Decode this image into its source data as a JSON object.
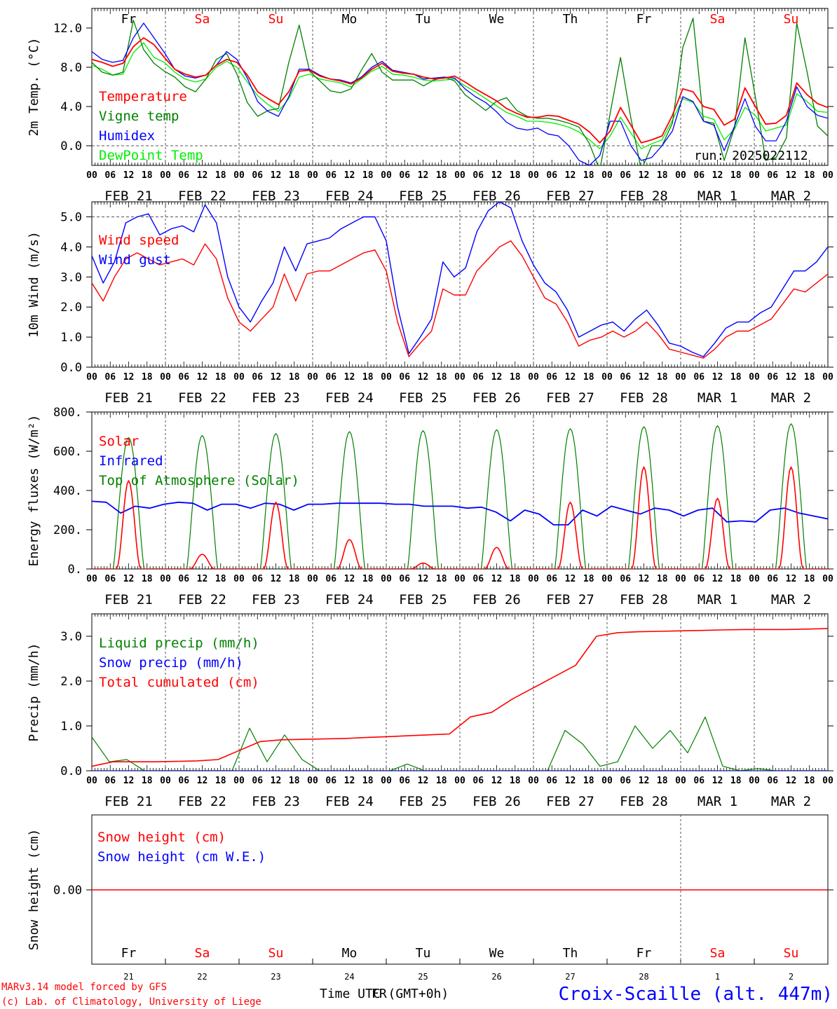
{
  "colors": {
    "red": "#ff0000",
    "green": "#008000",
    "blue": "#0000ff",
    "lightgreen": "#00ee00",
    "black": "#000000",
    "grid": "#555555"
  },
  "hour_ticks": [
    "00",
    "06",
    "12",
    "18"
  ],
  "date_labels": [
    "FEB 21",
    "FEB 22",
    "FEB 23",
    "FEB 24",
    "FEB 25",
    "FEB 26",
    "FEB 27",
    "FEB 28",
    "MAR  1",
    "MAR  2"
  ],
  "day_names": [
    {
      "label": "Fr",
      "color": "black"
    },
    {
      "label": "Sa",
      "color": "red"
    },
    {
      "label": "Su",
      "color": "red"
    },
    {
      "label": "Mo",
      "color": "black"
    },
    {
      "label": "Tu",
      "color": "black"
    },
    {
      "label": "We",
      "color": "black"
    },
    {
      "label": "Th",
      "color": "black"
    },
    {
      "label": "Fr",
      "color": "black"
    },
    {
      "label": "Sa",
      "color": "red"
    },
    {
      "label": "Su",
      "color": "red"
    }
  ],
  "day_numbers": [
    "21",
    "22",
    "23",
    "24",
    "25",
    "26",
    "27",
    "28",
    "1",
    "2"
  ],
  "footer": {
    "model_line1": "MARv3.14 model forced by GFS",
    "model_line2": "(c) Lab. of Climatology, University of Liege",
    "time_label": "Time UTC (GMT+0h)",
    "time_label_overlay": "FR",
    "station": "Croix-Scaille (alt. 447m)"
  },
  "chart_data": [
    {
      "type": "line",
      "ylabel": "2m Temp. (°C)",
      "ylim": [
        -2.0,
        14.0
      ],
      "y_ticks": [
        "12.0",
        "8.0",
        "4.0",
        "0.0"
      ],
      "dashed_reference": 0.0,
      "annotation": "run: 2025022112",
      "x_step_hours": 6,
      "series": [
        {
          "name": "Temperature",
          "color": "red",
          "values": [
            8.8,
            8.5,
            8.1,
            8.4,
            10.1,
            11.0,
            10.3,
            9.0,
            7.8,
            7.3,
            7.0,
            7.2,
            8.2,
            8.8,
            8.5,
            7.2,
            5.5,
            4.8,
            4.2,
            5.5,
            7.6,
            7.7,
            7.1,
            6.8,
            6.6,
            6.3,
            6.9,
            7.8,
            8.4,
            7.6,
            7.4,
            7.3,
            7.0,
            6.8,
            6.9,
            7.1,
            6.5,
            5.8,
            5.2,
            4.6,
            3.8,
            3.3,
            2.9,
            2.9,
            3.1,
            3.0,
            2.6,
            2.2,
            1.4,
            0.3,
            1.5,
            3.9,
            2.1,
            0.3,
            0.6,
            1.0,
            3.1,
            5.8,
            5.5,
            4.0,
            3.7,
            2.1,
            2.7,
            5.9,
            4.0,
            2.2,
            2.3,
            3.1,
            6.4,
            5.2,
            4.3,
            3.9
          ]
        },
        {
          "name": "Vigne temp",
          "color": "green",
          "values": [
            8.5,
            7.5,
            7.2,
            7.5,
            12.8,
            9.8,
            8.4,
            7.6,
            7.0,
            6.0,
            5.5,
            6.8,
            8.8,
            9.4,
            7.3,
            4.4,
            3.0,
            3.6,
            3.8,
            8.5,
            12.3,
            7.6,
            6.6,
            5.6,
            5.4,
            5.8,
            7.7,
            9.4,
            7.5,
            6.7,
            6.7,
            6.7,
            6.1,
            6.7,
            7.0,
            6.6,
            5.2,
            4.4,
            3.6,
            4.5,
            4.9,
            3.6,
            3.0,
            2.8,
            2.8,
            2.6,
            2.3,
            1.9,
            0.2,
            -2.5,
            3.3,
            9.0,
            2.8,
            -2.5,
            0.0,
            0.0,
            2.3,
            10.0,
            13.0,
            2.5,
            2.3,
            -1.5,
            1.9,
            11.0,
            5.0,
            -1.5,
            -1.2,
            0.8,
            12.5,
            7.5,
            2.0,
            1.0
          ]
        },
        {
          "name": "Humidex",
          "color": "blue",
          "values": [
            9.6,
            8.8,
            8.5,
            8.7,
            11.0,
            12.5,
            11.0,
            9.5,
            7.8,
            7.1,
            6.9,
            7.2,
            8.2,
            9.6,
            8.8,
            6.9,
            4.5,
            3.5,
            3.0,
            5.0,
            7.8,
            7.8,
            7.2,
            6.8,
            6.7,
            6.4,
            7.0,
            8.0,
            8.6,
            7.7,
            7.5,
            7.3,
            6.8,
            6.9,
            7.0,
            6.9,
            5.8,
            5.0,
            4.4,
            3.5,
            2.4,
            1.8,
            1.6,
            1.8,
            1.2,
            1.0,
            0.0,
            -1.5,
            -2.0,
            -1.0,
            2.5,
            2.5,
            0.0,
            -1.5,
            -1.2,
            0.0,
            1.5,
            5.0,
            4.5,
            2.5,
            2.1,
            -0.5,
            2.0,
            4.8,
            2.0,
            0.5,
            0.5,
            2.5,
            6.0,
            4.0,
            3.1,
            2.8
          ]
        },
        {
          "name": "DewPoint Temp",
          "color": "lightgreen",
          "values": [
            8.2,
            7.8,
            7.2,
            7.3,
            9.5,
            10.5,
            9.0,
            8.5,
            7.5,
            6.8,
            6.5,
            6.8,
            8.0,
            8.6,
            8.0,
            6.5,
            5.1,
            4.2,
            3.5,
            4.8,
            7.0,
            7.3,
            6.8,
            6.6,
            6.4,
            6.0,
            6.8,
            7.6,
            8.1,
            7.3,
            7.2,
            7.0,
            6.7,
            6.6,
            6.7,
            6.8,
            6.1,
            5.5,
            4.8,
            4.1,
            3.4,
            3.0,
            2.5,
            2.5,
            2.4,
            2.2,
            1.9,
            1.4,
            0.6,
            -0.3,
            1.0,
            2.9,
            1.3,
            -0.3,
            0.2,
            0.6,
            2.6,
            4.8,
            4.4,
            3.0,
            2.7,
            0.6,
            1.7,
            3.9,
            3.1,
            1.5,
            1.8,
            2.1,
            5.3,
            4.5,
            3.5,
            3.4
          ]
        }
      ]
    },
    {
      "type": "line",
      "ylabel": "10m Wind (m/s)",
      "ylim": [
        0.0,
        5.5
      ],
      "y_ticks": [
        "5.0",
        "4.0",
        "3.0",
        "2.0",
        "1.0",
        "0.0"
      ],
      "dashed_reference": 5.0,
      "x_step_hours": 6,
      "series": [
        {
          "name": "Wind speed",
          "color": "red",
          "values": [
            2.8,
            2.2,
            3.0,
            3.6,
            3.8,
            3.6,
            3.4,
            3.5,
            3.6,
            3.4,
            4.1,
            3.6,
            2.3,
            1.5,
            1.2,
            1.6,
            2.0,
            3.1,
            2.2,
            3.1,
            3.2,
            3.2,
            3.4,
            3.6,
            3.8,
            3.9,
            3.2,
            1.5,
            0.35,
            0.8,
            1.2,
            2.6,
            2.4,
            2.4,
            3.2,
            3.6,
            4.0,
            4.2,
            3.7,
            3.0,
            2.3,
            2.1,
            1.5,
            0.7,
            0.9,
            1.0,
            1.2,
            1.0,
            1.2,
            1.5,
            1.1,
            0.6,
            0.5,
            0.4,
            0.3,
            0.6,
            1.0,
            1.2,
            1.2,
            1.4,
            1.6,
            2.1,
            2.6,
            2.5,
            2.8,
            3.1
          ]
        },
        {
          "name": "Wind gust",
          "color": "blue",
          "values": [
            3.7,
            2.8,
            3.5,
            4.8,
            5.0,
            5.1,
            4.4,
            4.6,
            4.7,
            4.5,
            5.4,
            4.8,
            3.0,
            2.0,
            1.5,
            2.2,
            2.8,
            4.0,
            3.2,
            4.1,
            4.2,
            4.3,
            4.6,
            4.8,
            5.0,
            5.0,
            4.2,
            2.0,
            0.45,
            1.0,
            1.6,
            3.5,
            3.0,
            3.3,
            4.5,
            5.2,
            5.5,
            5.3,
            4.2,
            3.4,
            2.8,
            2.5,
            1.9,
            1.0,
            1.2,
            1.4,
            1.5,
            1.2,
            1.6,
            1.9,
            1.4,
            0.8,
            0.7,
            0.5,
            0.35,
            0.8,
            1.3,
            1.5,
            1.5,
            1.8,
            2.0,
            2.6,
            3.2,
            3.2,
            3.5,
            4.0
          ]
        }
      ]
    },
    {
      "type": "line",
      "ylabel": "Energy fluxes (W/m²)",
      "ylim": [
        0,
        800
      ],
      "y_ticks": [
        "800.",
        "600.",
        "400.",
        "200.",
        "0."
      ],
      "x_step_hours": 6,
      "series": [
        {
          "name": "Solar",
          "color": "red",
          "daily_peaks": [
            450,
            75,
            340,
            150,
            30,
            110,
            340,
            520,
            360,
            520
          ]
        },
        {
          "name": "Infrared",
          "color": "blue",
          "values": [
            345,
            340,
            285,
            320,
            310,
            330,
            340,
            335,
            300,
            330,
            330,
            310,
            335,
            330,
            300,
            330,
            330,
            335,
            335,
            335,
            335,
            330,
            330,
            320,
            320,
            320,
            310,
            315,
            290,
            245,
            300,
            280,
            225,
            225,
            300,
            270,
            320,
            300,
            280,
            310,
            300,
            270,
            300,
            310,
            240,
            245,
            240,
            300,
            310,
            285,
            270,
            255
          ]
        },
        {
          "name": "Top of Atmosphere (Solar)",
          "color": "green",
          "daily_peaks": [
            670,
            680,
            690,
            700,
            705,
            710,
            715,
            725,
            730,
            740
          ]
        }
      ]
    },
    {
      "type": "line",
      "ylabel": "Precip (mm/h)",
      "ylim": [
        0.0,
        3.5
      ],
      "y_ticks": [
        "3.0",
        "2.0",
        "1.0",
        "0.0"
      ],
      "x_step_hours": 6,
      "series": [
        {
          "name": "Liquid precip (mm/h)",
          "color": "green",
          "values": [
            0.75,
            0.2,
            0.25,
            0.0,
            0.0,
            0.0,
            0.0,
            0.0,
            0.0,
            0.95,
            0.2,
            0.8,
            0.25,
            0.0,
            0.0,
            0.0,
            0.0,
            0.0,
            0.15,
            0.0,
            0.0,
            0.0,
            0.0,
            0.0,
            0.0,
            0.0,
            0.0,
            0.9,
            0.6,
            0.1,
            0.2,
            1.0,
            0.5,
            0.9,
            0.4,
            1.2,
            0.1,
            0.0,
            0.05,
            0.0,
            0.0,
            0.0,
            0.0
          ]
        },
        {
          "name": "Snow precip (mm/h)",
          "color": "blue",
          "values": [
            0,
            0,
            0,
            0,
            0,
            0,
            0,
            0,
            0,
            0,
            0,
            0,
            0,
            0,
            0,
            0,
            0,
            0,
            0,
            0,
            0,
            0,
            0,
            0,
            0,
            0,
            0,
            0,
            0,
            0,
            0,
            0,
            0,
            0,
            0,
            0,
            0,
            0,
            0,
            0,
            0,
            0,
            0
          ]
        },
        {
          "name": "Total cumulated (cm)",
          "color": "red",
          "values": [
            0.1,
            0.2,
            0.2,
            0.2,
            0.21,
            0.22,
            0.25,
            0.45,
            0.65,
            0.69,
            0.7,
            0.71,
            0.72,
            0.74,
            0.76,
            0.78,
            0.8,
            0.82,
            1.2,
            1.3,
            1.6,
            1.85,
            2.1,
            2.35,
            3.0,
            3.08,
            3.1,
            3.11,
            3.12,
            3.13,
            3.14,
            3.15,
            3.15,
            3.15,
            3.16,
            3.17
          ]
        }
      ]
    },
    {
      "type": "line",
      "ylabel": "Snow height (cm)",
      "y_ticks": [
        "0.00"
      ],
      "series": [
        {
          "name": "Snow height (cm)",
          "color": "red",
          "values": [
            0,
            0
          ]
        },
        {
          "name": "Snow height (cm W.E.)",
          "color": "blue",
          "values": []
        }
      ]
    }
  ]
}
